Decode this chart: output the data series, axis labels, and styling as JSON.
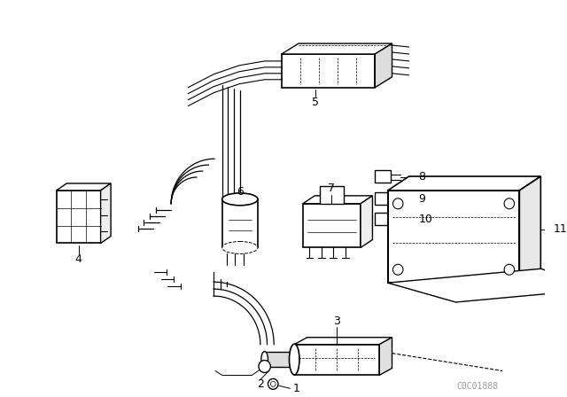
{
  "bg_color": "#ffffff",
  "line_color": "#000000",
  "fig_width": 6.4,
  "fig_height": 4.48,
  "dpi": 100,
  "watermark": "C0C01888",
  "watermark_color": "#999999",
  "watermark_fontsize": 7
}
